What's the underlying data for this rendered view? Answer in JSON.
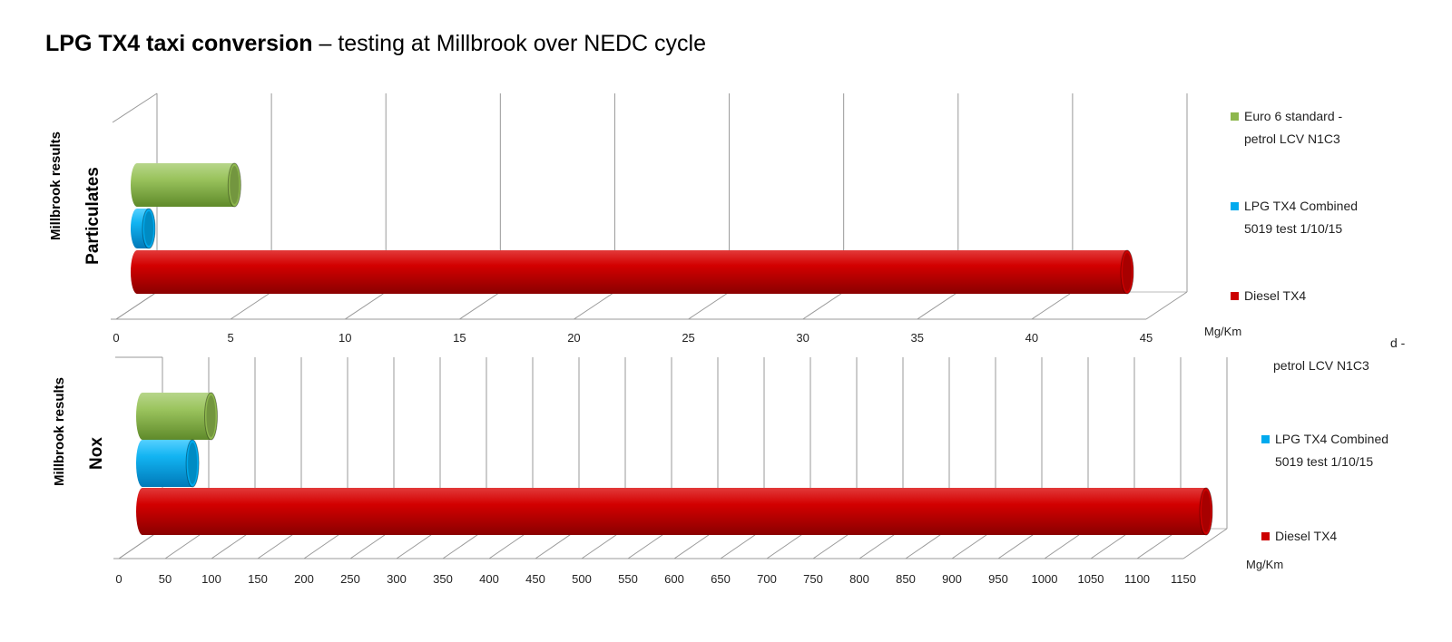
{
  "title": {
    "bold": "LPG TX4 taxi conversion",
    "rest": " – testing at Millbrook over NEDC cycle"
  },
  "chart_data": [
    {
      "type": "bar",
      "orientation": "horizontal",
      "style": "3d-cylinder",
      "y_axis_title": "Millbrook results",
      "category": "Particulates",
      "unit": "Mg/Km",
      "xlim": [
        0,
        45
      ],
      "x_tick_step": 5,
      "grid": true,
      "legend_position": "right",
      "series": [
        {
          "name": "Euro 6  standard - petrol LCV N1C3",
          "value": 4.5,
          "color": "#8db74d"
        },
        {
          "name": "LPG TX4 Combined 5019 test 1/10/15",
          "value": 1.4,
          "color": "#00aaee"
        },
        {
          "name": "Diesel TX4",
          "value": 43.5,
          "color": "#cc0000"
        }
      ],
      "legend_lines": [
        [
          "Euro 6  standard -",
          "petrol LCV N1C3"
        ],
        [
          "LPG TX4 Combined",
          "5019 test 1/10/15"
        ],
        [
          "Diesel TX4"
        ]
      ]
    },
    {
      "type": "bar",
      "orientation": "horizontal",
      "style": "3d-cylinder",
      "y_axis_title": "Millbrook results",
      "category": "Nox",
      "unit": "Mg/Km",
      "xlim": [
        0,
        1150
      ],
      "x_tick_step": 50,
      "grid": true,
      "legend_position": "right",
      "series": [
        {
          "name": "Euro 6  standard - petrol LCV N1C3",
          "value": 82,
          "color": "#8db74d"
        },
        {
          "name": "LPG TX4 Combined 5019 test 1/10/15",
          "value": 62,
          "color": "#00aaee"
        },
        {
          "name": "Diesel TX4",
          "value": 1157,
          "color": "#cc0000"
        }
      ],
      "legend_lines": [
        [
          "d -",
          "petrol LCV N1C3"
        ],
        [
          "LPG TX4 Combined",
          "5019 test 1/10/15"
        ],
        [
          "Diesel TX4"
        ]
      ]
    }
  ]
}
